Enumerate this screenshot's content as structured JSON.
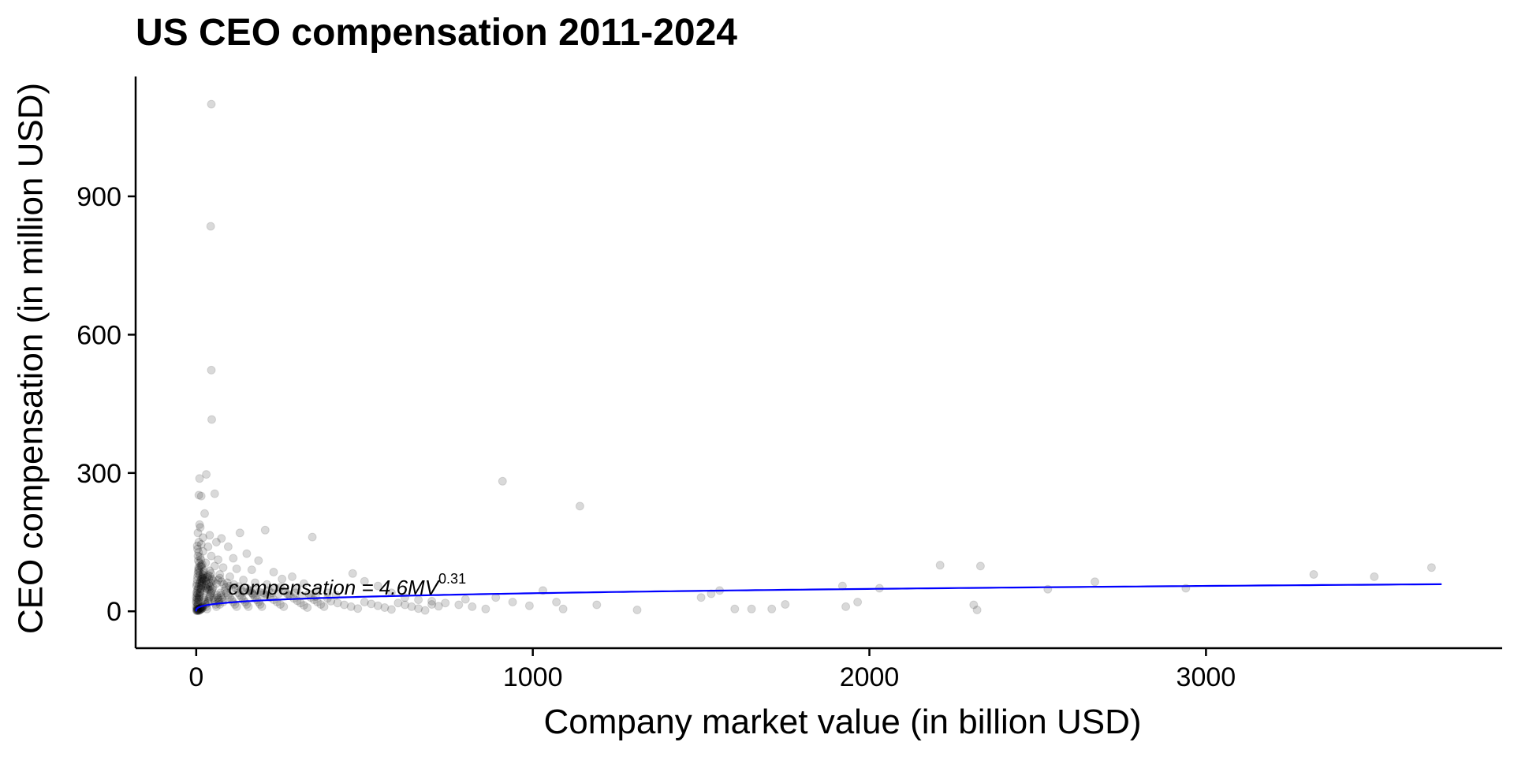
{
  "chart_data": {
    "type": "scatter",
    "title": "US CEO compensation 2011-2024",
    "xlabel": "Company market value (in billion USD)",
    "ylabel": "CEO compensation (in million USD)",
    "xlim": [
      -180,
      3880
    ],
    "ylim": [
      -80,
      1160
    ],
    "x_ticks": [
      0,
      1000,
      2000,
      3000
    ],
    "y_ticks": [
      0,
      300,
      600,
      900
    ],
    "grid": false,
    "legend": "none",
    "point_color": "#000000",
    "point_opacity": 0.15,
    "fit_color": "#0000ff",
    "fit": {
      "coefficient": 4.6,
      "exponent": 0.31,
      "x_range": [
        0,
        3700
      ]
    },
    "annotation": {
      "prefix": "compensation = 4.6",
      "variable": "MV",
      "superscript": "0.31",
      "x": 95,
      "y": 36
    },
    "series": [
      {
        "points": [
          [
            45,
            1100
          ],
          [
            43,
            835
          ],
          [
            45,
            523
          ],
          [
            46,
            416
          ],
          [
            30,
            297
          ],
          [
            10,
            288
          ],
          [
            8,
            252
          ],
          [
            15,
            250
          ],
          [
            55,
            255
          ],
          [
            25,
            212
          ],
          [
            10,
            188
          ],
          [
            12,
            182
          ],
          [
            5,
            170
          ],
          [
            130,
            170
          ],
          [
            205,
            176
          ],
          [
            345,
            161
          ],
          [
            20,
            160
          ],
          [
            40,
            165
          ],
          [
            60,
            150
          ],
          [
            75,
            158
          ],
          [
            8,
            150
          ],
          [
            15,
            145
          ],
          [
            35,
            140
          ],
          [
            95,
            140
          ],
          [
            150,
            125
          ],
          [
            185,
            110
          ],
          [
            110,
            115
          ],
          [
            45,
            120
          ],
          [
            65,
            112
          ],
          [
            20,
            130
          ],
          [
            5,
            120
          ],
          [
            28,
            105
          ],
          [
            55,
            98
          ],
          [
            80,
            95
          ],
          [
            120,
            92
          ],
          [
            165,
            90
          ],
          [
            230,
            85
          ],
          [
            255,
            70
          ],
          [
            285,
            75
          ],
          [
            320,
            60
          ],
          [
            15,
            100
          ],
          [
            40,
            88
          ],
          [
            70,
            80
          ],
          [
            100,
            75
          ],
          [
            140,
            68
          ],
          [
            175,
            62
          ],
          [
            210,
            58
          ],
          [
            250,
            52
          ],
          [
            300,
            48
          ],
          [
            360,
            45
          ],
          [
            390,
            40
          ],
          [
            415,
            35
          ],
          [
            465,
            82
          ],
          [
            500,
            65
          ],
          [
            540,
            55
          ],
          [
            580,
            40
          ],
          [
            620,
            30
          ],
          [
            660,
            25
          ],
          [
            700,
            22
          ],
          [
            740,
            18
          ],
          [
            780,
            14
          ],
          [
            800,
            26
          ],
          [
            820,
            10
          ],
          [
            860,
            5
          ],
          [
            890,
            30
          ],
          [
            910,
            282
          ],
          [
            940,
            20
          ],
          [
            990,
            12
          ],
          [
            1030,
            45
          ],
          [
            1070,
            20
          ],
          [
            1090,
            5
          ],
          [
            1140,
            228
          ],
          [
            1190,
            14
          ],
          [
            1310,
            3
          ],
          [
            1500,
            30
          ],
          [
            1530,
            38
          ],
          [
            1555,
            45
          ],
          [
            1600,
            5
          ],
          [
            1650,
            5
          ],
          [
            1710,
            5
          ],
          [
            1750,
            15
          ],
          [
            1920,
            55
          ],
          [
            1930,
            10
          ],
          [
            1965,
            20
          ],
          [
            2030,
            50
          ],
          [
            2210,
            100
          ],
          [
            2310,
            14
          ],
          [
            2330,
            98
          ],
          [
            2320,
            3
          ],
          [
            2530,
            48
          ],
          [
            2670,
            64
          ],
          [
            2940,
            50
          ],
          [
            3320,
            80
          ],
          [
            3500,
            75
          ],
          [
            3670,
            95
          ],
          [
            2,
            5
          ],
          [
            4,
            12
          ],
          [
            6,
            20
          ],
          [
            8,
            28
          ],
          [
            10,
            35
          ],
          [
            12,
            42
          ],
          [
            14,
            50
          ],
          [
            16,
            58
          ],
          [
            18,
            65
          ],
          [
            20,
            72
          ],
          [
            3,
            8
          ],
          [
            5,
            15
          ],
          [
            7,
            25
          ],
          [
            9,
            32
          ],
          [
            11,
            40
          ],
          [
            13,
            48
          ],
          [
            15,
            55
          ],
          [
            17,
            62
          ],
          [
            19,
            70
          ],
          [
            21,
            78
          ],
          [
            22,
            30
          ],
          [
            24,
            25
          ],
          [
            26,
            20
          ],
          [
            28,
            15
          ],
          [
            30,
            10
          ],
          [
            32,
            5
          ],
          [
            34,
            18
          ],
          [
            36,
            22
          ],
          [
            38,
            28
          ],
          [
            40,
            32
          ],
          [
            42,
            36
          ],
          [
            44,
            40
          ],
          [
            46,
            44
          ],
          [
            48,
            48
          ],
          [
            50,
            52
          ],
          [
            52,
            30
          ],
          [
            54,
            25
          ],
          [
            56,
            20
          ],
          [
            58,
            15
          ],
          [
            60,
            10
          ],
          [
            62,
            35
          ],
          [
            64,
            30
          ],
          [
            66,
            25
          ],
          [
            68,
            20
          ],
          [
            70,
            15
          ],
          [
            72,
            40
          ],
          [
            74,
            35
          ],
          [
            76,
            30
          ],
          [
            78,
            25
          ],
          [
            80,
            20
          ],
          [
            85,
            45
          ],
          [
            90,
            40
          ],
          [
            95,
            35
          ],
          [
            100,
            30
          ],
          [
            105,
            25
          ],
          [
            110,
            20
          ],
          [
            115,
            15
          ],
          [
            120,
            10
          ],
          [
            125,
            40
          ],
          [
            130,
            35
          ],
          [
            135,
            30
          ],
          [
            140,
            25
          ],
          [
            145,
            20
          ],
          [
            150,
            15
          ],
          [
            155,
            10
          ],
          [
            160,
            45
          ],
          [
            165,
            40
          ],
          [
            170,
            35
          ],
          [
            175,
            30
          ],
          [
            180,
            25
          ],
          [
            185,
            20
          ],
          [
            190,
            15
          ],
          [
            195,
            10
          ],
          [
            200,
            40
          ],
          [
            210,
            35
          ],
          [
            220,
            30
          ],
          [
            230,
            25
          ],
          [
            240,
            20
          ],
          [
            250,
            15
          ],
          [
            260,
            10
          ],
          [
            270,
            38
          ],
          [
            280,
            33
          ],
          [
            290,
            28
          ],
          [
            300,
            23
          ],
          [
            310,
            18
          ],
          [
            320,
            13
          ],
          [
            330,
            8
          ],
          [
            340,
            30
          ],
          [
            350,
            25
          ],
          [
            360,
            20
          ],
          [
            370,
            15
          ],
          [
            380,
            10
          ],
          [
            390,
            28
          ],
          [
            400,
            22
          ],
          [
            420,
            18
          ],
          [
            440,
            14
          ],
          [
            460,
            10
          ],
          [
            480,
            6
          ],
          [
            500,
            20
          ],
          [
            520,
            16
          ],
          [
            540,
            12
          ],
          [
            560,
            8
          ],
          [
            580,
            4
          ],
          [
            600,
            18
          ],
          [
            620,
            14
          ],
          [
            640,
            10
          ],
          [
            660,
            6
          ],
          [
            680,
            2
          ],
          [
            700,
            15
          ],
          [
            720,
            11
          ],
          [
            1,
            2
          ],
          [
            2,
            1
          ],
          [
            3,
            3
          ],
          [
            4,
            2
          ],
          [
            5,
            4
          ],
          [
            6,
            3
          ],
          [
            7,
            1
          ],
          [
            8,
            5
          ],
          [
            9,
            2
          ],
          [
            10,
            6
          ],
          [
            11,
            3
          ],
          [
            12,
            7
          ],
          [
            13,
            4
          ],
          [
            14,
            8
          ],
          [
            15,
            5
          ],
          [
            16,
            9
          ],
          [
            17,
            6
          ],
          [
            18,
            10
          ],
          [
            19,
            7
          ],
          [
            20,
            11
          ],
          [
            1,
            55
          ],
          [
            2,
            60
          ],
          [
            3,
            68
          ],
          [
            4,
            75
          ],
          [
            5,
            82
          ],
          [
            6,
            88
          ],
          [
            7,
            95
          ],
          [
            8,
            92
          ],
          [
            9,
            85
          ],
          [
            10,
            78
          ],
          [
            0,
            30
          ],
          [
            0,
            20
          ],
          [
            0,
            10
          ],
          [
            1,
            40
          ],
          [
            1,
            25
          ],
          [
            2,
            35
          ],
          [
            2,
            18
          ],
          [
            3,
            45
          ],
          [
            3,
            28
          ],
          [
            4,
            38
          ],
          [
            25,
            45
          ],
          [
            27,
            55
          ],
          [
            29,
            50
          ],
          [
            31,
            58
          ],
          [
            33,
            48
          ],
          [
            35,
            52
          ],
          [
            37,
            60
          ],
          [
            39,
            46
          ],
          [
            41,
            54
          ],
          [
            43,
            62
          ],
          [
            23,
            68
          ],
          [
            26,
            72
          ],
          [
            29,
            66
          ],
          [
            32,
            74
          ],
          [
            35,
            78
          ],
          [
            38,
            70
          ],
          [
            41,
            76
          ],
          [
            44,
            82
          ],
          [
            47,
            70
          ],
          [
            50,
            66
          ],
          [
            5,
            48
          ],
          [
            7,
            52
          ],
          [
            9,
            58
          ],
          [
            11,
            62
          ],
          [
            13,
            66
          ],
          [
            15,
            70
          ],
          [
            17,
            74
          ],
          [
            19,
            80
          ],
          [
            21,
            84
          ],
          [
            23,
            88
          ],
          [
            6,
            110
          ],
          [
            9,
            105
          ],
          [
            12,
            98
          ],
          [
            4,
            135
          ],
          [
            7,
            128
          ],
          [
            3,
            142
          ],
          [
            11,
            118
          ],
          [
            14,
            112
          ],
          [
            18,
            102
          ],
          [
            16,
            96
          ],
          [
            60,
            60
          ],
          [
            65,
            68
          ],
          [
            70,
            72
          ],
          [
            75,
            64
          ],
          [
            82,
            58
          ],
          [
            88,
            52
          ],
          [
            92,
            62
          ],
          [
            98,
            55
          ],
          [
            104,
            48
          ],
          [
            112,
            58
          ],
          [
            118,
            50
          ],
          [
            126,
            54
          ],
          [
            134,
            46
          ],
          [
            142,
            42
          ],
          [
            150,
            50
          ],
          [
            158,
            44
          ],
          [
            168,
            38
          ],
          [
            178,
            48
          ],
          [
            188,
            42
          ],
          [
            198,
            36
          ],
          [
            215,
            45
          ],
          [
            225,
            40
          ],
          [
            235,
            50
          ],
          [
            245,
            38
          ],
          [
            262,
            44
          ],
          [
            275,
            36
          ],
          [
            295,
            40
          ],
          [
            315,
            34
          ],
          [
            335,
            38
          ],
          [
            355,
            32
          ]
        ]
      }
    ]
  }
}
